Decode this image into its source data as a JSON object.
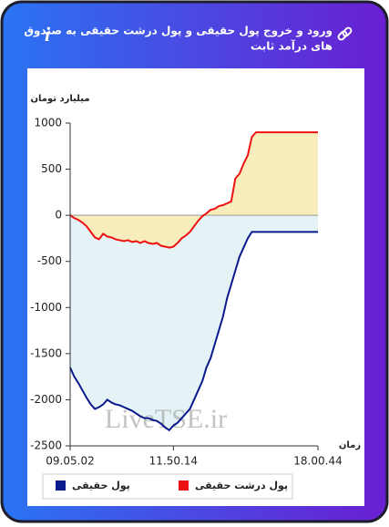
{
  "header": {
    "title_lines": [
      "ورود و خروج پول حقیقی و پول درشت حقیقی به صندوق",
      "های درآمد ثابت"
    ],
    "info_icon": "i"
  },
  "chart_data": {
    "type": "area",
    "y_label": "میلیارد تومان",
    "x_label": "زمان",
    "watermark": "LiveTSE.ir",
    "x": [
      0,
      1,
      2,
      3,
      4,
      5,
      6,
      7,
      8,
      9,
      10,
      11,
      12,
      13,
      14,
      15,
      16,
      17,
      18,
      19,
      20,
      21,
      22,
      23,
      24,
      25,
      26,
      27,
      28,
      29,
      30,
      31,
      32,
      33,
      34,
      35,
      36,
      37,
      38,
      39,
      40,
      41,
      42,
      43,
      44,
      45,
      46,
      47,
      48,
      49,
      50,
      51,
      52,
      53,
      54,
      55,
      56,
      57,
      58,
      59,
      60
    ],
    "xlim": [
      0,
      60
    ],
    "xticks": [
      {
        "value": 0,
        "label": "09.05.02"
      },
      {
        "value": 25,
        "label": "11.50.14"
      },
      {
        "value": 60,
        "label": "18.00.44"
      }
    ],
    "ylim": [
      -2500,
      1000
    ],
    "yticks": [
      -2500,
      -2000,
      -1500,
      -1000,
      -500,
      0,
      500,
      1000
    ],
    "grid": false,
    "series": [
      {
        "name": "پول حقیقی",
        "color": "#0a1a8c",
        "area_color": "#e6f3f6",
        "values": [
          -1650,
          -1750,
          -1820,
          -1900,
          -1980,
          -2050,
          -2100,
          -2080,
          -2050,
          -2000,
          -2030,
          -2050,
          -2060,
          -2080,
          -2100,
          -2120,
          -2150,
          -2180,
          -2200,
          -2200,
          -2220,
          -2230,
          -2260,
          -2300,
          -2330,
          -2280,
          -2250,
          -2200,
          -2150,
          -2100,
          -2000,
          -1900,
          -1800,
          -1650,
          -1550,
          -1400,
          -1250,
          -1100,
          -900,
          -750,
          -600,
          -450,
          -350,
          -250,
          -180,
          -180,
          -180,
          -180,
          -180,
          -180,
          -180,
          -180,
          -180,
          -180,
          -180,
          -180,
          -180,
          -180,
          -180,
          -180,
          -180
        ]
      },
      {
        "name": "پول درشت حقیقی",
        "color": "#ee1111",
        "area_color": "#f8edbd",
        "values": [
          0,
          -30,
          -50,
          -80,
          -120,
          -180,
          -240,
          -260,
          -200,
          -230,
          -240,
          -260,
          -270,
          -280,
          -270,
          -290,
          -280,
          -300,
          -280,
          -300,
          -310,
          -300,
          -330,
          -340,
          -350,
          -340,
          -300,
          -250,
          -220,
          -180,
          -120,
          -60,
          -10,
          20,
          60,
          70,
          100,
          110,
          130,
          150,
          400,
          450,
          560,
          650,
          850,
          900,
          900,
          900,
          900,
          900,
          900,
          900,
          900,
          900,
          900,
          900,
          900,
          900,
          900,
          900,
          900
        ]
      }
    ]
  }
}
